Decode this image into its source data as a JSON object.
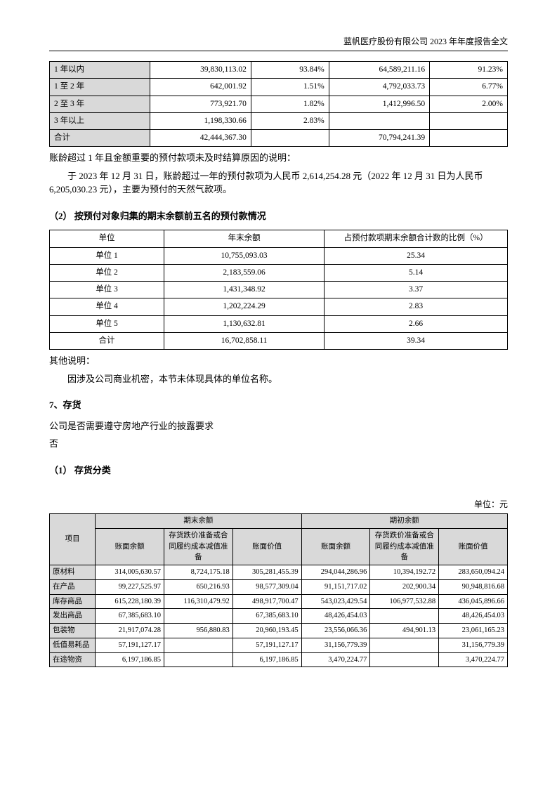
{
  "header": "蓝帆医疗股份有限公司 2023 年年度报告全文",
  "table1": {
    "rows": [
      {
        "label": "1 年以内",
        "a": "39,830,113.02",
        "apct": "93.84%",
        "b": "64,589,211.16",
        "bpct": "91.23%"
      },
      {
        "label": "1 至 2 年",
        "a": "642,001.92",
        "apct": "1.51%",
        "b": "4,792,033.73",
        "bpct": "6.77%"
      },
      {
        "label": "2 至 3 年",
        "a": "773,921.70",
        "apct": "1.82%",
        "b": "1,412,996.50",
        "bpct": "2.00%"
      },
      {
        "label": "3 年以上",
        "a": "1,198,330.66",
        "apct": "2.83%",
        "b": "",
        "bpct": ""
      },
      {
        "label": "合计",
        "a": "42,444,367.30",
        "apct": "",
        "b": "70,794,241.39",
        "bpct": ""
      }
    ]
  },
  "note1_label": "账龄超过 1 年且金额重要的预付款项未及时结算原因的说明：",
  "note1_body": "于 2023 年 12 月 31 日，账龄超过一年的预付款项为人民币 2,614,254.28 元（2022 年 12 月 31 日为人民币 6,205,030.23 元），主要为预付的天然气款项。",
  "section2_title": "（2） 按预付对象归集的期末余额前五名的预付款情况",
  "table2": {
    "headers": [
      "单位",
      "年末余额",
      "占预付款项期末余额合计数的比例（%）"
    ],
    "rows": [
      {
        "unit": "单位 1",
        "bal": "10,755,093.03",
        "pct": "25.34"
      },
      {
        "unit": "单位 2",
        "bal": "2,183,559.06",
        "pct": "5.14"
      },
      {
        "unit": "单位 3",
        "bal": "1,431,348.92",
        "pct": "3.37"
      },
      {
        "unit": "单位 4",
        "bal": "1,202,224.29",
        "pct": "2.83"
      },
      {
        "unit": "单位 5",
        "bal": "1,130,632.81",
        "pct": "2.66"
      },
      {
        "unit": "合计",
        "bal": "16,702,858.11",
        "pct": "39.34"
      }
    ]
  },
  "other_note_label": "其他说明：",
  "other_note_body": "因涉及公司商业机密，本节未体现具体的单位名称。",
  "section7_title": "7、存货",
  "req_q": "公司是否需要遵守房地产行业的披露要求",
  "req_a": "否",
  "sub1_title": "（1） 存货分类",
  "unit_label": "单位：元",
  "table3": {
    "group_headers": [
      "项目",
      "期末余额",
      "期初余额"
    ],
    "sub_headers": [
      "账面余额",
      "存货跌价准备或合同履约成本减值准备",
      "账面价值",
      "账面余额",
      "存货跌价准备或合同履约成本减值准备",
      "账面价值"
    ],
    "rows": [
      {
        "item": "原材料",
        "v": [
          "314,005,630.57",
          "8,724,175.18",
          "305,281,455.39",
          "294,044,286.96",
          "10,394,192.72",
          "283,650,094.24"
        ]
      },
      {
        "item": "在产品",
        "v": [
          "99,227,525.97",
          "650,216.93",
          "98,577,309.04",
          "91,151,717.02",
          "202,900.34",
          "90,948,816.68"
        ]
      },
      {
        "item": "库存商品",
        "v": [
          "615,228,180.39",
          "116,310,479.92",
          "498,917,700.47",
          "543,023,429.54",
          "106,977,532.88",
          "436,045,896.66"
        ]
      },
      {
        "item": "发出商品",
        "v": [
          "67,385,683.10",
          "",
          "67,385,683.10",
          "48,426,454.03",
          "",
          "48,426,454.03"
        ]
      },
      {
        "item": "包装物",
        "v": [
          "21,917,074.28",
          "956,880.83",
          "20,960,193.45",
          "23,556,066.36",
          "494,901.13",
          "23,061,165.23"
        ]
      },
      {
        "item": "低值易耗品",
        "v": [
          "57,191,127.17",
          "",
          "57,191,127.17",
          "31,156,779.39",
          "",
          "31,156,779.39"
        ]
      },
      {
        "item": "在途物资",
        "v": [
          "6,197,186.85",
          "",
          "6,197,186.85",
          "3,470,224.77",
          "",
          "3,470,224.77"
        ]
      }
    ]
  }
}
